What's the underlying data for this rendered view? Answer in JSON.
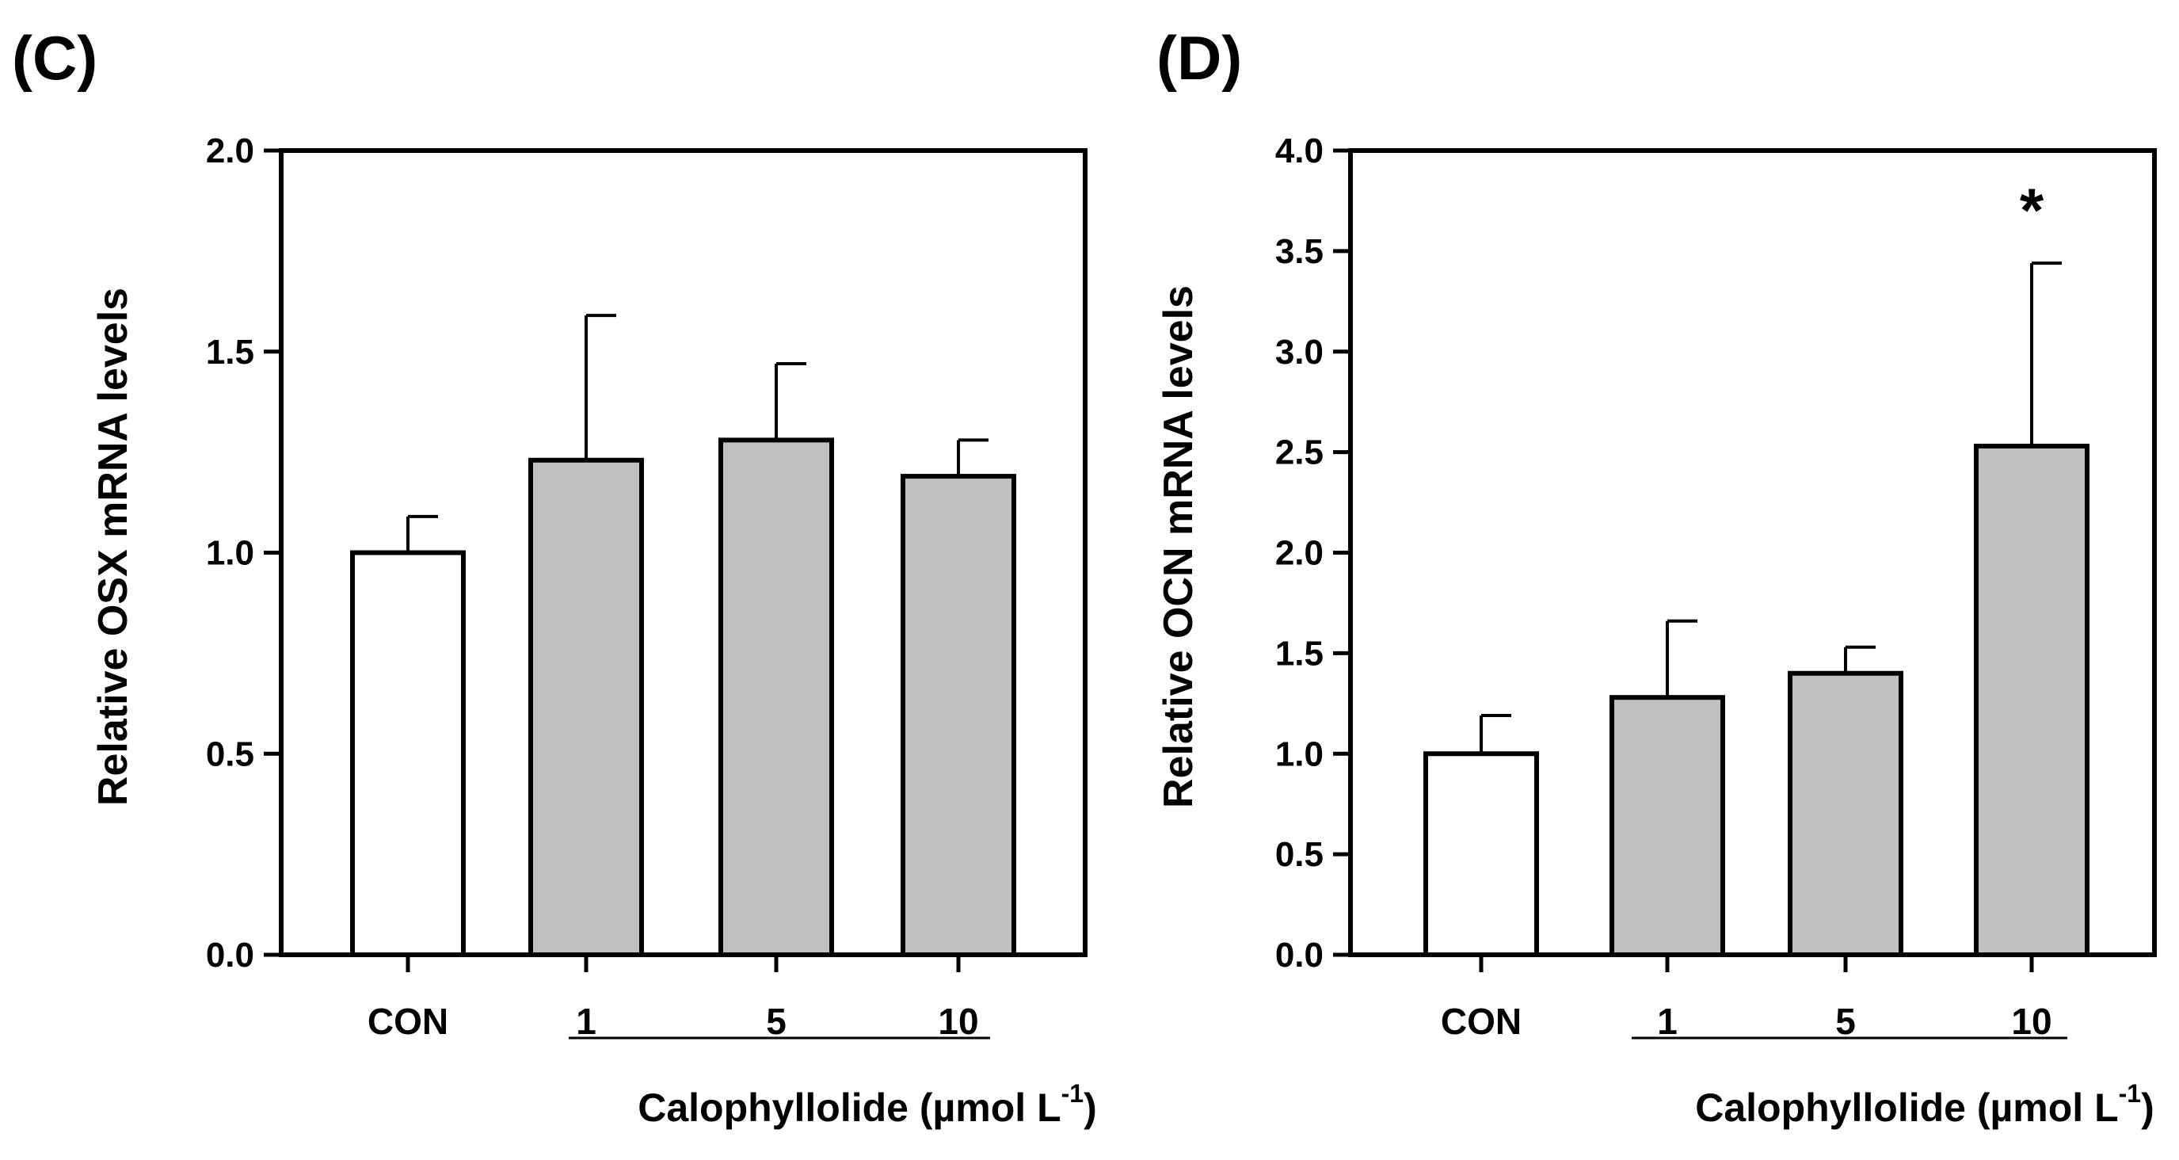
{
  "chart_data": [
    {
      "panel": "(C)",
      "type": "bar",
      "categories": [
        "CON",
        "1",
        "5",
        "10"
      ],
      "values": [
        1.0,
        1.23,
        1.28,
        1.19
      ],
      "errors": [
        0.09,
        0.36,
        0.19,
        0.09
      ],
      "bar_colors": [
        "#ffffff",
        "#c0c0c0",
        "#c0c0c0",
        "#c0c0c0"
      ],
      "significance": [
        "",
        "",
        "",
        ""
      ],
      "ylabel": "Relative OSX mRNA levels",
      "ylim": [
        0,
        2.0
      ],
      "yticks": [
        "0.0",
        "0.5",
        "1.0",
        "1.5",
        "2.0"
      ],
      "xlabel_main": "Calophyllolide (µmol L",
      "xlabel_sup": "-1",
      "xlabel_close": ")"
    },
    {
      "panel": "(D)",
      "type": "bar",
      "categories": [
        "CON",
        "1",
        "5",
        "10"
      ],
      "values": [
        1.0,
        1.28,
        1.4,
        2.53
      ],
      "errors": [
        0.19,
        0.38,
        0.13,
        0.91
      ],
      "bar_colors": [
        "#ffffff",
        "#c0c0c0",
        "#c0c0c0",
        "#c0c0c0"
      ],
      "significance": [
        "",
        "",
        "",
        "*"
      ],
      "ylabel": "Relative OCN mRNA levels",
      "ylim": [
        0,
        4.0
      ],
      "yticks": [
        "0.0",
        "0.5",
        "1.0",
        "1.5",
        "2.0",
        "2.5",
        "3.0",
        "3.5",
        "4.0"
      ],
      "xlabel_main": "Calophyllolide (µmol L",
      "xlabel_sup": "-1",
      "xlabel_close": ")"
    }
  ]
}
